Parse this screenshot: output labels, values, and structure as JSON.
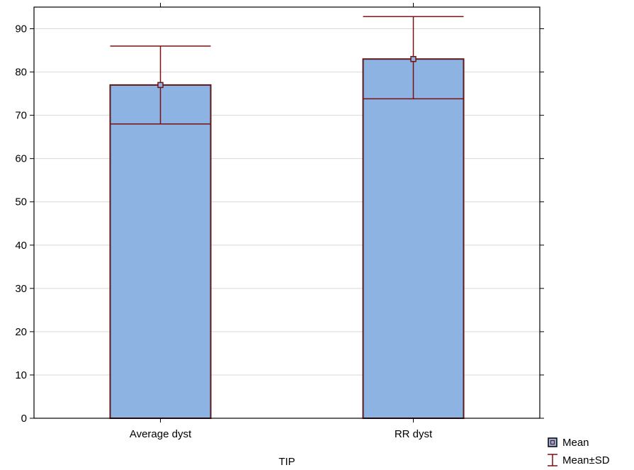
{
  "chart_data": {
    "type": "bar",
    "title": "",
    "xlabel": "TIP",
    "ylabel": "",
    "categories": [
      "Average dyst",
      "RR dyst"
    ],
    "values": [
      77.0,
      83.0
    ],
    "error_low": [
      68.0,
      73.8
    ],
    "error_high": [
      86.0,
      92.8
    ],
    "ylim": [
      0,
      95
    ],
    "yticks": [
      0,
      10,
      20,
      30,
      40,
      50,
      60,
      70,
      80,
      90
    ],
    "grid": true,
    "legend_position": "bottom-right",
    "legend": [
      {
        "symbol": "square",
        "label": "Mean"
      },
      {
        "symbol": "whisker",
        "label": "Mean±SD"
      }
    ],
    "colors": {
      "bar_fill": "#8DB3E2",
      "bar_edge": "#5A1A1A",
      "error": "#7A1010",
      "grid": "#D8D8D8",
      "axis": "#000000"
    }
  }
}
